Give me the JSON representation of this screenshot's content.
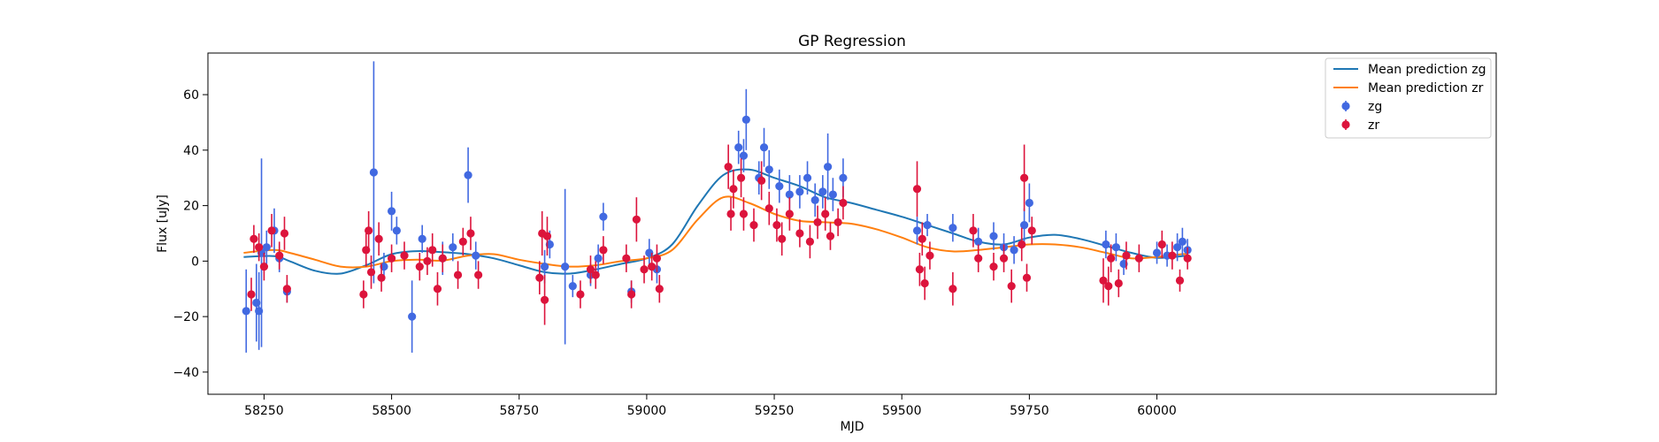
{
  "chart_data": {
    "type": "scatter",
    "title": "GP Regression",
    "xlabel": "MJD",
    "ylabel": "Flux [uJy]",
    "xlim": [
      58140,
      60665
    ],
    "ylim": [
      -48,
      75
    ],
    "xticks": [
      58250,
      58500,
      58750,
      59000,
      59250,
      59500,
      59750,
      60000
    ],
    "yticks": [
      -40,
      -20,
      0,
      20,
      40,
      60
    ],
    "legend_position": "upper right",
    "colors": {
      "zg_line": "#1f77b4",
      "zr_line": "#ff7f0e",
      "zg_points": "#4169e1",
      "zr_points": "#dc143c"
    },
    "lines": [
      {
        "name": "Mean prediction zg",
        "color": "#1f77b4",
        "x": [
          58210,
          58270,
          58300,
          58350,
          58400,
          58450,
          58500,
          58550,
          58600,
          58650,
          58700,
          58750,
          58800,
          58850,
          58900,
          58950,
          59000,
          59050,
          59100,
          59150,
          59200,
          59250,
          59300,
          59350,
          59400,
          59450,
          59500,
          59550,
          59600,
          59650,
          59700,
          59750,
          59800,
          59850,
          59900,
          59950,
          60000,
          60050,
          60060
        ],
        "y": [
          1.5,
          1.8,
          0,
          -3.5,
          -4.5,
          -1.5,
          2.5,
          3.6,
          3.2,
          2.5,
          1.0,
          -1.5,
          -4.0,
          -4.5,
          -3.0,
          -1.0,
          1.0,
          6.0,
          20.0,
          31.0,
          33.0,
          30.0,
          27.0,
          23.0,
          21.0,
          18.5,
          16.0,
          13.0,
          10.0,
          7.0,
          6.0,
          8.5,
          9.5,
          8.0,
          5.5,
          3.0,
          1.2,
          1.8,
          2.0
        ]
      },
      {
        "name": "Mean prediction zr",
        "color": "#ff7f0e",
        "x": [
          58210,
          58270,
          58300,
          58350,
          58400,
          58450,
          58500,
          58550,
          58600,
          58650,
          58700,
          58750,
          58800,
          58850,
          58900,
          58950,
          59000,
          59050,
          59100,
          59150,
          59200,
          59250,
          59300,
          59350,
          59400,
          59450,
          59500,
          59550,
          59600,
          59650,
          59700,
          59750,
          59800,
          59850,
          59900,
          59950,
          60000,
          60050,
          60060
        ],
        "y": [
          3.0,
          4.0,
          3.0,
          0.5,
          -2.0,
          -2.0,
          0.0,
          0.5,
          0.2,
          2.0,
          2.5,
          0.5,
          -1.0,
          -2.0,
          -1.5,
          0.0,
          1.0,
          4.0,
          15.0,
          23.0,
          21.0,
          17.0,
          14.5,
          14.0,
          13.5,
          11.5,
          8.5,
          5.0,
          3.5,
          4.0,
          5.0,
          6.0,
          6.0,
          5.0,
          3.0,
          1.0,
          1.5,
          2.5,
          2.5
        ]
      }
    ],
    "series": [
      {
        "name": "zg",
        "color": "#4169e1",
        "points": [
          {
            "x": 58215,
            "y": -18,
            "err": 15
          },
          {
            "x": 58235,
            "y": -15,
            "err": 14
          },
          {
            "x": 58240,
            "y": -18,
            "err": 14
          },
          {
            "x": 58245,
            "y": 3,
            "err": 34
          },
          {
            "x": 58255,
            "y": 5,
            "err": 6
          },
          {
            "x": 58270,
            "y": 11,
            "err": 8
          },
          {
            "x": 58280,
            "y": 1,
            "err": 5
          },
          {
            "x": 58295,
            "y": -11,
            "err": 4
          },
          {
            "x": 58465,
            "y": 32,
            "err": 40
          },
          {
            "x": 58485,
            "y": -2,
            "err": 5
          },
          {
            "x": 58500,
            "y": 18,
            "err": 7
          },
          {
            "x": 58510,
            "y": 11,
            "err": 5
          },
          {
            "x": 58540,
            "y": -20,
            "err": 13
          },
          {
            "x": 58560,
            "y": 8,
            "err": 5
          },
          {
            "x": 58600,
            "y": 1,
            "err": 6
          },
          {
            "x": 58620,
            "y": 5,
            "err": 5
          },
          {
            "x": 58650,
            "y": 31,
            "err": 10
          },
          {
            "x": 58665,
            "y": 2,
            "err": 5
          },
          {
            "x": 58800,
            "y": -2,
            "err": 6
          },
          {
            "x": 58810,
            "y": 6,
            "err": 5
          },
          {
            "x": 58840,
            "y": -2,
            "err": 28
          },
          {
            "x": 58855,
            "y": -9,
            "err": 4
          },
          {
            "x": 58890,
            "y": -5,
            "err": 4
          },
          {
            "x": 58905,
            "y": 1,
            "err": 5
          },
          {
            "x": 58915,
            "y": 16,
            "err": 5
          },
          {
            "x": 58970,
            "y": -11,
            "err": 4
          },
          {
            "x": 59005,
            "y": 3,
            "err": 5
          },
          {
            "x": 59020,
            "y": -3,
            "err": 5
          },
          {
            "x": 59180,
            "y": 41,
            "err": 6
          },
          {
            "x": 59190,
            "y": 38,
            "err": 6
          },
          {
            "x": 59195,
            "y": 51,
            "err": 11
          },
          {
            "x": 59220,
            "y": 30,
            "err": 6
          },
          {
            "x": 59230,
            "y": 41,
            "err": 7
          },
          {
            "x": 59240,
            "y": 33,
            "err": 7
          },
          {
            "x": 59260,
            "y": 27,
            "err": 6
          },
          {
            "x": 59280,
            "y": 24,
            "err": 7
          },
          {
            "x": 59300,
            "y": 25,
            "err": 6
          },
          {
            "x": 59315,
            "y": 30,
            "err": 6
          },
          {
            "x": 59330,
            "y": 22,
            "err": 6
          },
          {
            "x": 59345,
            "y": 25,
            "err": 6
          },
          {
            "x": 59355,
            "y": 34,
            "err": 12
          },
          {
            "x": 59365,
            "y": 24,
            "err": 6
          },
          {
            "x": 59385,
            "y": 30,
            "err": 7
          },
          {
            "x": 59530,
            "y": 11,
            "err": 5
          },
          {
            "x": 59550,
            "y": 13,
            "err": 4
          },
          {
            "x": 59600,
            "y": 12,
            "err": 5
          },
          {
            "x": 59650,
            "y": 7,
            "err": 5
          },
          {
            "x": 59680,
            "y": 9,
            "err": 5
          },
          {
            "x": 59700,
            "y": 5,
            "err": 5
          },
          {
            "x": 59720,
            "y": 4,
            "err": 5
          },
          {
            "x": 59740,
            "y": 13,
            "err": 6
          },
          {
            "x": 59750,
            "y": 21,
            "err": 7
          },
          {
            "x": 59900,
            "y": 6,
            "err": 5
          },
          {
            "x": 59920,
            "y": 5,
            "err": 5
          },
          {
            "x": 59935,
            "y": -1,
            "err": 4
          },
          {
            "x": 60000,
            "y": 3,
            "err": 4
          },
          {
            "x": 60020,
            "y": 2,
            "err": 4
          },
          {
            "x": 60040,
            "y": 5,
            "err": 5
          },
          {
            "x": 60050,
            "y": 7,
            "err": 5
          },
          {
            "x": 60060,
            "y": 4,
            "err": 4
          }
        ]
      },
      {
        "name": "zr",
        "color": "#dc143c",
        "points": [
          {
            "x": 58225,
            "y": -12,
            "err": 6
          },
          {
            "x": 58230,
            "y": 8,
            "err": 5
          },
          {
            "x": 58240,
            "y": 5,
            "err": 5
          },
          {
            "x": 58250,
            "y": -2,
            "err": 5
          },
          {
            "x": 58265,
            "y": 11,
            "err": 6
          },
          {
            "x": 58280,
            "y": 2,
            "err": 5
          },
          {
            "x": 58290,
            "y": 10,
            "err": 6
          },
          {
            "x": 58295,
            "y": -10,
            "err": 5
          },
          {
            "x": 58445,
            "y": -12,
            "err": 5
          },
          {
            "x": 58450,
            "y": 4,
            "err": 6
          },
          {
            "x": 58455,
            "y": 11,
            "err": 7
          },
          {
            "x": 58460,
            "y": -4,
            "err": 6
          },
          {
            "x": 58475,
            "y": 8,
            "err": 6
          },
          {
            "x": 58480,
            "y": -6,
            "err": 5
          },
          {
            "x": 58500,
            "y": 1,
            "err": 5
          },
          {
            "x": 58525,
            "y": 2,
            "err": 5
          },
          {
            "x": 58555,
            "y": -2,
            "err": 5
          },
          {
            "x": 58570,
            "y": 0,
            "err": 5
          },
          {
            "x": 58580,
            "y": 4,
            "err": 6
          },
          {
            "x": 58590,
            "y": -10,
            "err": 6
          },
          {
            "x": 58600,
            "y": 1,
            "err": 5
          },
          {
            "x": 58630,
            "y": -5,
            "err": 5
          },
          {
            "x": 58640,
            "y": 7,
            "err": 5
          },
          {
            "x": 58655,
            "y": 10,
            "err": 6
          },
          {
            "x": 58670,
            "y": -5,
            "err": 5
          },
          {
            "x": 58790,
            "y": -6,
            "err": 6
          },
          {
            "x": 58795,
            "y": 10,
            "err": 8
          },
          {
            "x": 58800,
            "y": -14,
            "err": 9
          },
          {
            "x": 58805,
            "y": 9,
            "err": 7
          },
          {
            "x": 58870,
            "y": -12,
            "err": 5
          },
          {
            "x": 58890,
            "y": -3,
            "err": 5
          },
          {
            "x": 58900,
            "y": -5,
            "err": 5
          },
          {
            "x": 58915,
            "y": 4,
            "err": 5
          },
          {
            "x": 58960,
            "y": 1,
            "err": 5
          },
          {
            "x": 58970,
            "y": -12,
            "err": 5
          },
          {
            "x": 58980,
            "y": 15,
            "err": 8
          },
          {
            "x": 58995,
            "y": -3,
            "err": 5
          },
          {
            "x": 59010,
            "y": -2,
            "err": 5
          },
          {
            "x": 59020,
            "y": 1,
            "err": 5
          },
          {
            "x": 59025,
            "y": -10,
            "err": 5
          },
          {
            "x": 59160,
            "y": 34,
            "err": 8
          },
          {
            "x": 59165,
            "y": 17,
            "err": 6
          },
          {
            "x": 59170,
            "y": 26,
            "err": 7
          },
          {
            "x": 59185,
            "y": 30,
            "err": 7
          },
          {
            "x": 59190,
            "y": 17,
            "err": 6
          },
          {
            "x": 59210,
            "y": 13,
            "err": 6
          },
          {
            "x": 59225,
            "y": 29,
            "err": 7
          },
          {
            "x": 59240,
            "y": 19,
            "err": 6
          },
          {
            "x": 59255,
            "y": 13,
            "err": 6
          },
          {
            "x": 59265,
            "y": 8,
            "err": 6
          },
          {
            "x": 59280,
            "y": 17,
            "err": 6
          },
          {
            "x": 59300,
            "y": 10,
            "err": 5
          },
          {
            "x": 59320,
            "y": 7,
            "err": 6
          },
          {
            "x": 59335,
            "y": 14,
            "err": 6
          },
          {
            "x": 59350,
            "y": 17,
            "err": 6
          },
          {
            "x": 59360,
            "y": 9,
            "err": 5
          },
          {
            "x": 59375,
            "y": 14,
            "err": 5
          },
          {
            "x": 59385,
            "y": 21,
            "err": 6
          },
          {
            "x": 59530,
            "y": 26,
            "err": 10
          },
          {
            "x": 59535,
            "y": -3,
            "err": 6
          },
          {
            "x": 59540,
            "y": 8,
            "err": 6
          },
          {
            "x": 59545,
            "y": -8,
            "err": 6
          },
          {
            "x": 59555,
            "y": 2,
            "err": 5
          },
          {
            "x": 59600,
            "y": -10,
            "err": 6
          },
          {
            "x": 59640,
            "y": 11,
            "err": 6
          },
          {
            "x": 59650,
            "y": 1,
            "err": 5
          },
          {
            "x": 59680,
            "y": -2,
            "err": 5
          },
          {
            "x": 59700,
            "y": 1,
            "err": 5
          },
          {
            "x": 59715,
            "y": -9,
            "err": 6
          },
          {
            "x": 59735,
            "y": 6,
            "err": 6
          },
          {
            "x": 59740,
            "y": 30,
            "err": 12
          },
          {
            "x": 59745,
            "y": -6,
            "err": 5
          },
          {
            "x": 59755,
            "y": 11,
            "err": 5
          },
          {
            "x": 59895,
            "y": -7,
            "err": 8
          },
          {
            "x": 59905,
            "y": -9,
            "err": 7
          },
          {
            "x": 59910,
            "y": 1,
            "err": 5
          },
          {
            "x": 59925,
            "y": -8,
            "err": 5
          },
          {
            "x": 59940,
            "y": 2,
            "err": 5
          },
          {
            "x": 59965,
            "y": 1,
            "err": 5
          },
          {
            "x": 60010,
            "y": 6,
            "err": 5
          },
          {
            "x": 60030,
            "y": 2,
            "err": 5
          },
          {
            "x": 60045,
            "y": -7,
            "err": 4
          },
          {
            "x": 60060,
            "y": 1,
            "err": 4
          }
        ]
      }
    ]
  }
}
